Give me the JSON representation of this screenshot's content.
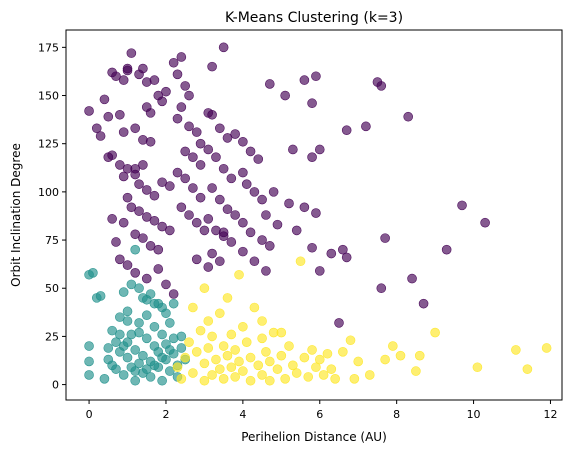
{
  "chart_data": {
    "type": "scatter",
    "title": "K-Means Clustering (k=3)",
    "xlabel": "Perihelion Distance (AU)",
    "ylabel": "Orbit Inclination Degree",
    "xlim": [
      -0.6,
      12.3
    ],
    "ylim": [
      -8,
      184
    ],
    "xticks": [
      0,
      2,
      4,
      6,
      8,
      10,
      12
    ],
    "yticks": [
      0,
      25,
      50,
      75,
      100,
      125,
      150,
      175
    ],
    "grid": false,
    "legend": "none",
    "marker_alpha": 0.65,
    "series": [
      {
        "color": "#440154",
        "points": [
          [
            0,
            142
          ],
          [
            0.2,
            133
          ],
          [
            0.3,
            129
          ],
          [
            0.4,
            148
          ],
          [
            0.5,
            139
          ],
          [
            0.5,
            118
          ],
          [
            0.6,
            162
          ],
          [
            0.7,
            160
          ],
          [
            0.9,
            158
          ],
          [
            1,
            163
          ],
          [
            1,
            164
          ],
          [
            1.1,
            172
          ],
          [
            1.3,
            161
          ],
          [
            1.4,
            164
          ],
          [
            1.5,
            157
          ],
          [
            1.7,
            158
          ],
          [
            1.8,
            150
          ],
          [
            1.9,
            147
          ],
          [
            2,
            152
          ],
          [
            1.5,
            144
          ],
          [
            1.6,
            141
          ],
          [
            0.8,
            140
          ],
          [
            0.9,
            131
          ],
          [
            1.2,
            133
          ],
          [
            1.4,
            127
          ],
          [
            1.6,
            126
          ],
          [
            0.6,
            119
          ],
          [
            0.8,
            114
          ],
          [
            0.9,
            108
          ],
          [
            1,
            112
          ],
          [
            1.2,
            109
          ],
          [
            1.3,
            104
          ],
          [
            1.5,
            101
          ],
          [
            1.7,
            98
          ],
          [
            1.9,
            105
          ],
          [
            2.1,
            103
          ],
          [
            1,
            97
          ],
          [
            1.1,
            92
          ],
          [
            1.3,
            90
          ],
          [
            1.5,
            87
          ],
          [
            1.7,
            85
          ],
          [
            1.9,
            82
          ],
          [
            2.1,
            80
          ],
          [
            0.6,
            86
          ],
          [
            0.9,
            84
          ],
          [
            1.2,
            78
          ],
          [
            1.4,
            76
          ],
          [
            1.6,
            72
          ],
          [
            1.8,
            70
          ],
          [
            0.7,
            74
          ],
          [
            0.8,
            65
          ],
          [
            1,
            62
          ],
          [
            1.2,
            58
          ],
          [
            1.5,
            55
          ],
          [
            1.8,
            60
          ],
          [
            2,
            52
          ],
          [
            2.2,
            47
          ],
          [
            2.4,
            170
          ],
          [
            2.2,
            167
          ],
          [
            2.3,
            161
          ],
          [
            2.5,
            155
          ],
          [
            2.6,
            150
          ],
          [
            2.4,
            144
          ],
          [
            2.3,
            138
          ],
          [
            2.6,
            134
          ],
          [
            2.8,
            131
          ],
          [
            2.9,
            125
          ],
          [
            2.5,
            121
          ],
          [
            2.7,
            118
          ],
          [
            2.9,
            114
          ],
          [
            2.3,
            110
          ],
          [
            2.5,
            107
          ],
          [
            2.7,
            102
          ],
          [
            2.9,
            97
          ],
          [
            2.4,
            92
          ],
          [
            2.6,
            88
          ],
          [
            2.8,
            84
          ],
          [
            3,
            80
          ],
          [
            3.1,
            141
          ],
          [
            3.2,
            140
          ],
          [
            3.4,
            133
          ],
          [
            3.6,
            128
          ],
          [
            3.1,
            122
          ],
          [
            3.3,
            118
          ],
          [
            3.5,
            112
          ],
          [
            3.7,
            107
          ],
          [
            3.2,
            102
          ],
          [
            3.4,
            96
          ],
          [
            3.6,
            91
          ],
          [
            3.8,
            88
          ],
          [
            3.1,
            86
          ],
          [
            3.3,
            80
          ],
          [
            3.5,
            77
          ],
          [
            3.7,
            74
          ],
          [
            3.2,
            68
          ],
          [
            3.4,
            64
          ],
          [
            3.1,
            61
          ],
          [
            3.2,
            165
          ],
          [
            3.5,
            175
          ],
          [
            3.8,
            130
          ],
          [
            4,
            126
          ],
          [
            4.2,
            121
          ],
          [
            4.4,
            117
          ],
          [
            4,
            110
          ],
          [
            4.1,
            104
          ],
          [
            4.3,
            100
          ],
          [
            4.5,
            96
          ],
          [
            4.6,
            88
          ],
          [
            4,
            84
          ],
          [
            4.2,
            79
          ],
          [
            4.5,
            75
          ],
          [
            4.7,
            72
          ],
          [
            4,
            69
          ],
          [
            4.3,
            64
          ],
          [
            4.6,
            59
          ],
          [
            4.7,
            156
          ],
          [
            5.1,
            150
          ],
          [
            5.6,
            158
          ],
          [
            5.9,
            160
          ],
          [
            5.8,
            146
          ],
          [
            5.3,
            122
          ],
          [
            5.8,
            118
          ],
          [
            6,
            122
          ],
          [
            4.8,
            100
          ],
          [
            5.2,
            94
          ],
          [
            5.6,
            92
          ],
          [
            5.9,
            89
          ],
          [
            4.9,
            83
          ],
          [
            5.4,
            80
          ],
          [
            5.8,
            71
          ],
          [
            6.3,
            68
          ],
          [
            6,
            59
          ],
          [
            6.6,
            70
          ],
          [
            6.7,
            66
          ],
          [
            6.5,
            32
          ],
          [
            6.7,
            132
          ],
          [
            7.2,
            134
          ],
          [
            7.5,
            157
          ],
          [
            7.6,
            155
          ],
          [
            8.3,
            139
          ],
          [
            7.7,
            76
          ],
          [
            7.6,
            50
          ],
          [
            8.4,
            55
          ],
          [
            8.7,
            42
          ],
          [
            9.7,
            93
          ],
          [
            9.3,
            70
          ],
          [
            10.3,
            84
          ],
          [
            3.5,
            79
          ],
          [
            2.8,
            65
          ],
          [
            1.4,
            114
          ],
          [
            1.2,
            112
          ]
        ]
      },
      {
        "color": "#21918c",
        "points": [
          [
            0,
            5
          ],
          [
            0,
            12
          ],
          [
            0,
            20
          ],
          [
            0,
            57
          ],
          [
            0.1,
            58
          ],
          [
            0.2,
            45
          ],
          [
            0.3,
            46
          ],
          [
            0.4,
            3
          ],
          [
            0.5,
            13
          ],
          [
            0.5,
            19
          ],
          [
            0.6,
            28
          ],
          [
            0.7,
            8
          ],
          [
            0.8,
            17
          ],
          [
            0.8,
            26
          ],
          [
            0.9,
            5
          ],
          [
            1,
            14
          ],
          [
            1,
            22
          ],
          [
            1,
            33
          ],
          [
            1.1,
            9
          ],
          [
            1.2,
            2
          ],
          [
            1.2,
            18
          ],
          [
            1.3,
            27
          ],
          [
            1.3,
            11
          ],
          [
            1.4,
            6
          ],
          [
            1.4,
            15
          ],
          [
            1.5,
            24
          ],
          [
            1.5,
            36
          ],
          [
            1.6,
            4
          ],
          [
            1.6,
            12
          ],
          [
            1.7,
            20
          ],
          [
            1.7,
            30
          ],
          [
            1.8,
            9
          ],
          [
            1.8,
            17
          ],
          [
            1.9,
            26
          ],
          [
            1.9,
            2
          ],
          [
            2,
            13
          ],
          [
            2,
            21
          ],
          [
            2.1,
            7
          ],
          [
            2.1,
            32
          ],
          [
            2.2,
            16
          ],
          [
            2.2,
            24
          ],
          [
            2.3,
            10
          ],
          [
            2.3,
            4
          ],
          [
            2.4,
            19
          ],
          [
            0.9,
            48
          ],
          [
            1.1,
            52
          ],
          [
            1.3,
            50
          ],
          [
            1.5,
            44
          ],
          [
            1.7,
            42
          ],
          [
            1.9,
            40
          ],
          [
            1.2,
            70
          ],
          [
            1.8,
            42
          ],
          [
            2.2,
            42
          ],
          [
            2,
            37
          ],
          [
            1,
            38
          ],
          [
            0.8,
            35
          ],
          [
            1.4,
            45
          ],
          [
            1.6,
            47
          ],
          [
            2.5,
            13
          ],
          [
            0.6,
            10
          ],
          [
            1.1,
            26
          ],
          [
            1.3,
            32
          ],
          [
            1.7,
            10
          ],
          [
            1.9,
            14
          ],
          [
            2.1,
            18
          ],
          [
            1.5,
            8
          ],
          [
            1.2,
            7
          ],
          [
            0.9,
            20
          ],
          [
            0.7,
            22
          ],
          [
            2.4,
            25
          ]
        ]
      },
      {
        "color": "#fde725",
        "points": [
          [
            2.3,
            9
          ],
          [
            2.4,
            3
          ],
          [
            2.5,
            14
          ],
          [
            2.6,
            22
          ],
          [
            2.7,
            6
          ],
          [
            2.8,
            17
          ],
          [
            2.9,
            28
          ],
          [
            3,
            2
          ],
          [
            3,
            11
          ],
          [
            3.1,
            19
          ],
          [
            3.1,
            33
          ],
          [
            3.2,
            5
          ],
          [
            3.2,
            25
          ],
          [
            3.3,
            13
          ],
          [
            3.4,
            8
          ],
          [
            3.4,
            37
          ],
          [
            3.5,
            20
          ],
          [
            3.5,
            3
          ],
          [
            3.6,
            15
          ],
          [
            3.7,
            26
          ],
          [
            3.7,
            9
          ],
          [
            3.8,
            4
          ],
          [
            3.8,
            18
          ],
          [
            3.9,
            12
          ],
          [
            4,
            30
          ],
          [
            4,
            7
          ],
          [
            4.1,
            22
          ],
          [
            4.2,
            14
          ],
          [
            4.2,
            2
          ],
          [
            4.3,
            40
          ],
          [
            4.4,
            10
          ],
          [
            4.5,
            24
          ],
          [
            4.5,
            5
          ],
          [
            4.6,
            17
          ],
          [
            4.7,
            12
          ],
          [
            4.8,
            27
          ],
          [
            4.9,
            8
          ],
          [
            5,
            15
          ],
          [
            5.1,
            3
          ],
          [
            5.2,
            20
          ],
          [
            5.3,
            10
          ],
          [
            5.4,
            6
          ],
          [
            5.5,
            64
          ],
          [
            5.6,
            14
          ],
          [
            5.7,
            4
          ],
          [
            5.8,
            18
          ],
          [
            5.9,
            9
          ],
          [
            6,
            13
          ],
          [
            6.1,
            5
          ],
          [
            6.2,
            16
          ],
          [
            6.3,
            8
          ],
          [
            6.4,
            3
          ],
          [
            6.6,
            17
          ],
          [
            6.8,
            23
          ],
          [
            6.9,
            3
          ],
          [
            7,
            12
          ],
          [
            7.3,
            5
          ],
          [
            7.7,
            13
          ],
          [
            7.9,
            20
          ],
          [
            8.1,
            15
          ],
          [
            8.5,
            7
          ],
          [
            8.6,
            15
          ],
          [
            9,
            27
          ],
          [
            10.1,
            9
          ],
          [
            11.1,
            18
          ],
          [
            11.4,
            8
          ],
          [
            11.9,
            19
          ],
          [
            3.9,
            57
          ],
          [
            3.6,
            45
          ],
          [
            3,
            50
          ],
          [
            4.5,
            33
          ],
          [
            5,
            27
          ],
          [
            4.7,
            2
          ],
          [
            2.7,
            40
          ]
        ]
      }
    ]
  }
}
